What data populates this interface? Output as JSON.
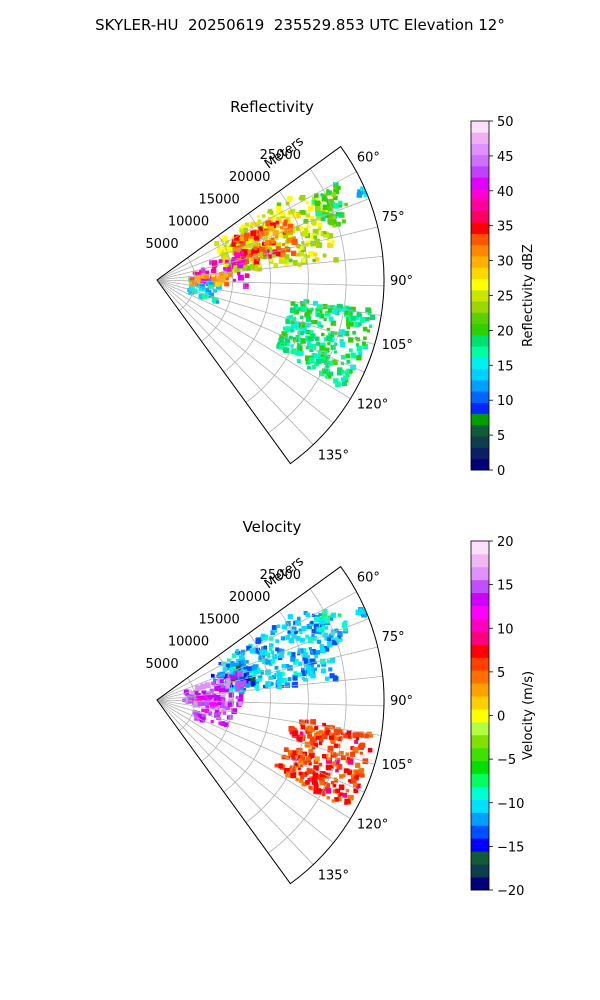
{
  "figure_title": "SKYLER-HU  20250619  235529.853 UTC Elevation 12°",
  "colors": {
    "grid": "#b0b0b0",
    "frame": "#000000",
    "reflectivity_scale": [
      "#00007a",
      "#0a1f66",
      "#0e3d4e",
      "#115a3a",
      "#00a000",
      "#0028ff",
      "#0066ff",
      "#00a0ff",
      "#00d0ff",
      "#00f0f0",
      "#00ffa0",
      "#00e070",
      "#30d000",
      "#5ad000",
      "#9bd800",
      "#c8e600",
      "#ffff00",
      "#ffd800",
      "#ffb000",
      "#ff8800",
      "#ff5500",
      "#ff0000",
      "#ff0060",
      "#ff0099",
      "#ff00d0",
      "#e000ff",
      "#c040ff",
      "#d070ff",
      "#e090ff",
      "#f0b0f0",
      "#fae0fa"
    ],
    "velocity_scale": [
      "#00007a",
      "#0e3d4e",
      "#115a3a",
      "#0000ff",
      "#0050ff",
      "#00a0ff",
      "#00e0ff",
      "#00ffd0",
      "#00ff60",
      "#00e000",
      "#40e000",
      "#80e000",
      "#b0ff40",
      "#ffff00",
      "#ffd000",
      "#ffa000",
      "#ff7000",
      "#ff4000",
      "#ff0000",
      "#ff0080",
      "#ff00c0",
      "#ff00ff",
      "#d000ff",
      "#c050ff",
      "#e090ff",
      "#f0b8f0",
      "#fae0fa"
    ]
  },
  "chart_data": [
    {
      "type": "heatmap",
      "projection": "polar-sector",
      "title": "Reflectivity",
      "radial_label": "Meters",
      "radial_ticks": [
        5000,
        10000,
        15000,
        20000,
        25000
      ],
      "rlim": [
        0,
        30000
      ],
      "azimuth_ticks": [
        "60°",
        "75°",
        "90°",
        "105°",
        "120°",
        "135°"
      ],
      "azimuth_range_deg": [
        54,
        144
      ],
      "colorbar": {
        "label": "Reflectivity dBZ",
        "range": [
          0,
          50
        ],
        "ticks": [
          "0",
          "5",
          "10",
          "15",
          "20",
          "25",
          "30",
          "35",
          "40",
          "45",
          "50"
        ]
      },
      "grid": true,
      "echo_regions": [
        {
          "az": [
            58,
            84
          ],
          "r": [
            9000,
            24000
          ],
          "value": 25
        },
        {
          "az": [
            62,
            80
          ],
          "r": [
            11000,
            19000
          ],
          "value": 33
        },
        {
          "az": [
            72,
            94
          ],
          "r": [
            5000,
            12000
          ],
          "value": 40
        },
        {
          "az": [
            84,
            92
          ],
          "r": [
            7000,
            10000
          ],
          "value": 48
        },
        {
          "az": [
            86,
            112
          ],
          "r": [
            4000,
            9000
          ],
          "value": 14
        },
        {
          "az": [
            84,
            96
          ],
          "r": [
            4000,
            10000
          ],
          "value": 30
        },
        {
          "az": [
            62,
            70
          ],
          "r": [
            23000,
            27000
          ],
          "value": 20
        },
        {
          "az": [
            70,
            73
          ],
          "r": [
            24000,
            26000
          ],
          "value": 21
        },
        {
          "az": [
            66,
            68
          ],
          "r": [
            29000,
            30000
          ],
          "value": 15
        },
        {
          "az": [
            98,
            120
          ],
          "r": [
            18000,
            29000
          ],
          "value": 18
        }
      ]
    },
    {
      "type": "heatmap",
      "projection": "polar-sector",
      "title": "Velocity",
      "radial_label": "Meters",
      "radial_ticks": [
        5000,
        10000,
        15000,
        20000,
        25000
      ],
      "rlim": [
        0,
        30000
      ],
      "azimuth_ticks": [
        "60°",
        "75°",
        "90°",
        "105°",
        "120°",
        "135°"
      ],
      "azimuth_range_deg": [
        54,
        144
      ],
      "colorbar": {
        "label": "Velocity (m/s)",
        "range": [
          -20,
          20
        ],
        "ticks": [
          "−20",
          "−15",
          "−10",
          "−5",
          "0",
          "5",
          "10",
          "15",
          "20"
        ]
      },
      "grid": true,
      "echo_regions": [
        {
          "az": [
            58,
            84
          ],
          "r": [
            9000,
            24000
          ],
          "value": -11
        },
        {
          "az": [
            66,
            80
          ],
          "r": [
            8000,
            13000
          ],
          "value": -14
        },
        {
          "az": [
            72,
            100
          ],
          "r": [
            4000,
            12000
          ],
          "value": 15
        },
        {
          "az": [
            84,
            94
          ],
          "r": [
            3000,
            9000
          ],
          "value": 12
        },
        {
          "az": [
            92,
            114
          ],
          "r": [
            4000,
            10000
          ],
          "value": 14
        },
        {
          "az": [
            62,
            70
          ],
          "r": [
            23000,
            27000
          ],
          "value": -10
        },
        {
          "az": [
            70,
            73
          ],
          "r": [
            24000,
            26000
          ],
          "value": -11
        },
        {
          "az": [
            66,
            68
          ],
          "r": [
            29000,
            30000
          ],
          "value": -12
        },
        {
          "az": [
            98,
            120
          ],
          "r": [
            18000,
            29000
          ],
          "value": 6
        }
      ]
    }
  ]
}
